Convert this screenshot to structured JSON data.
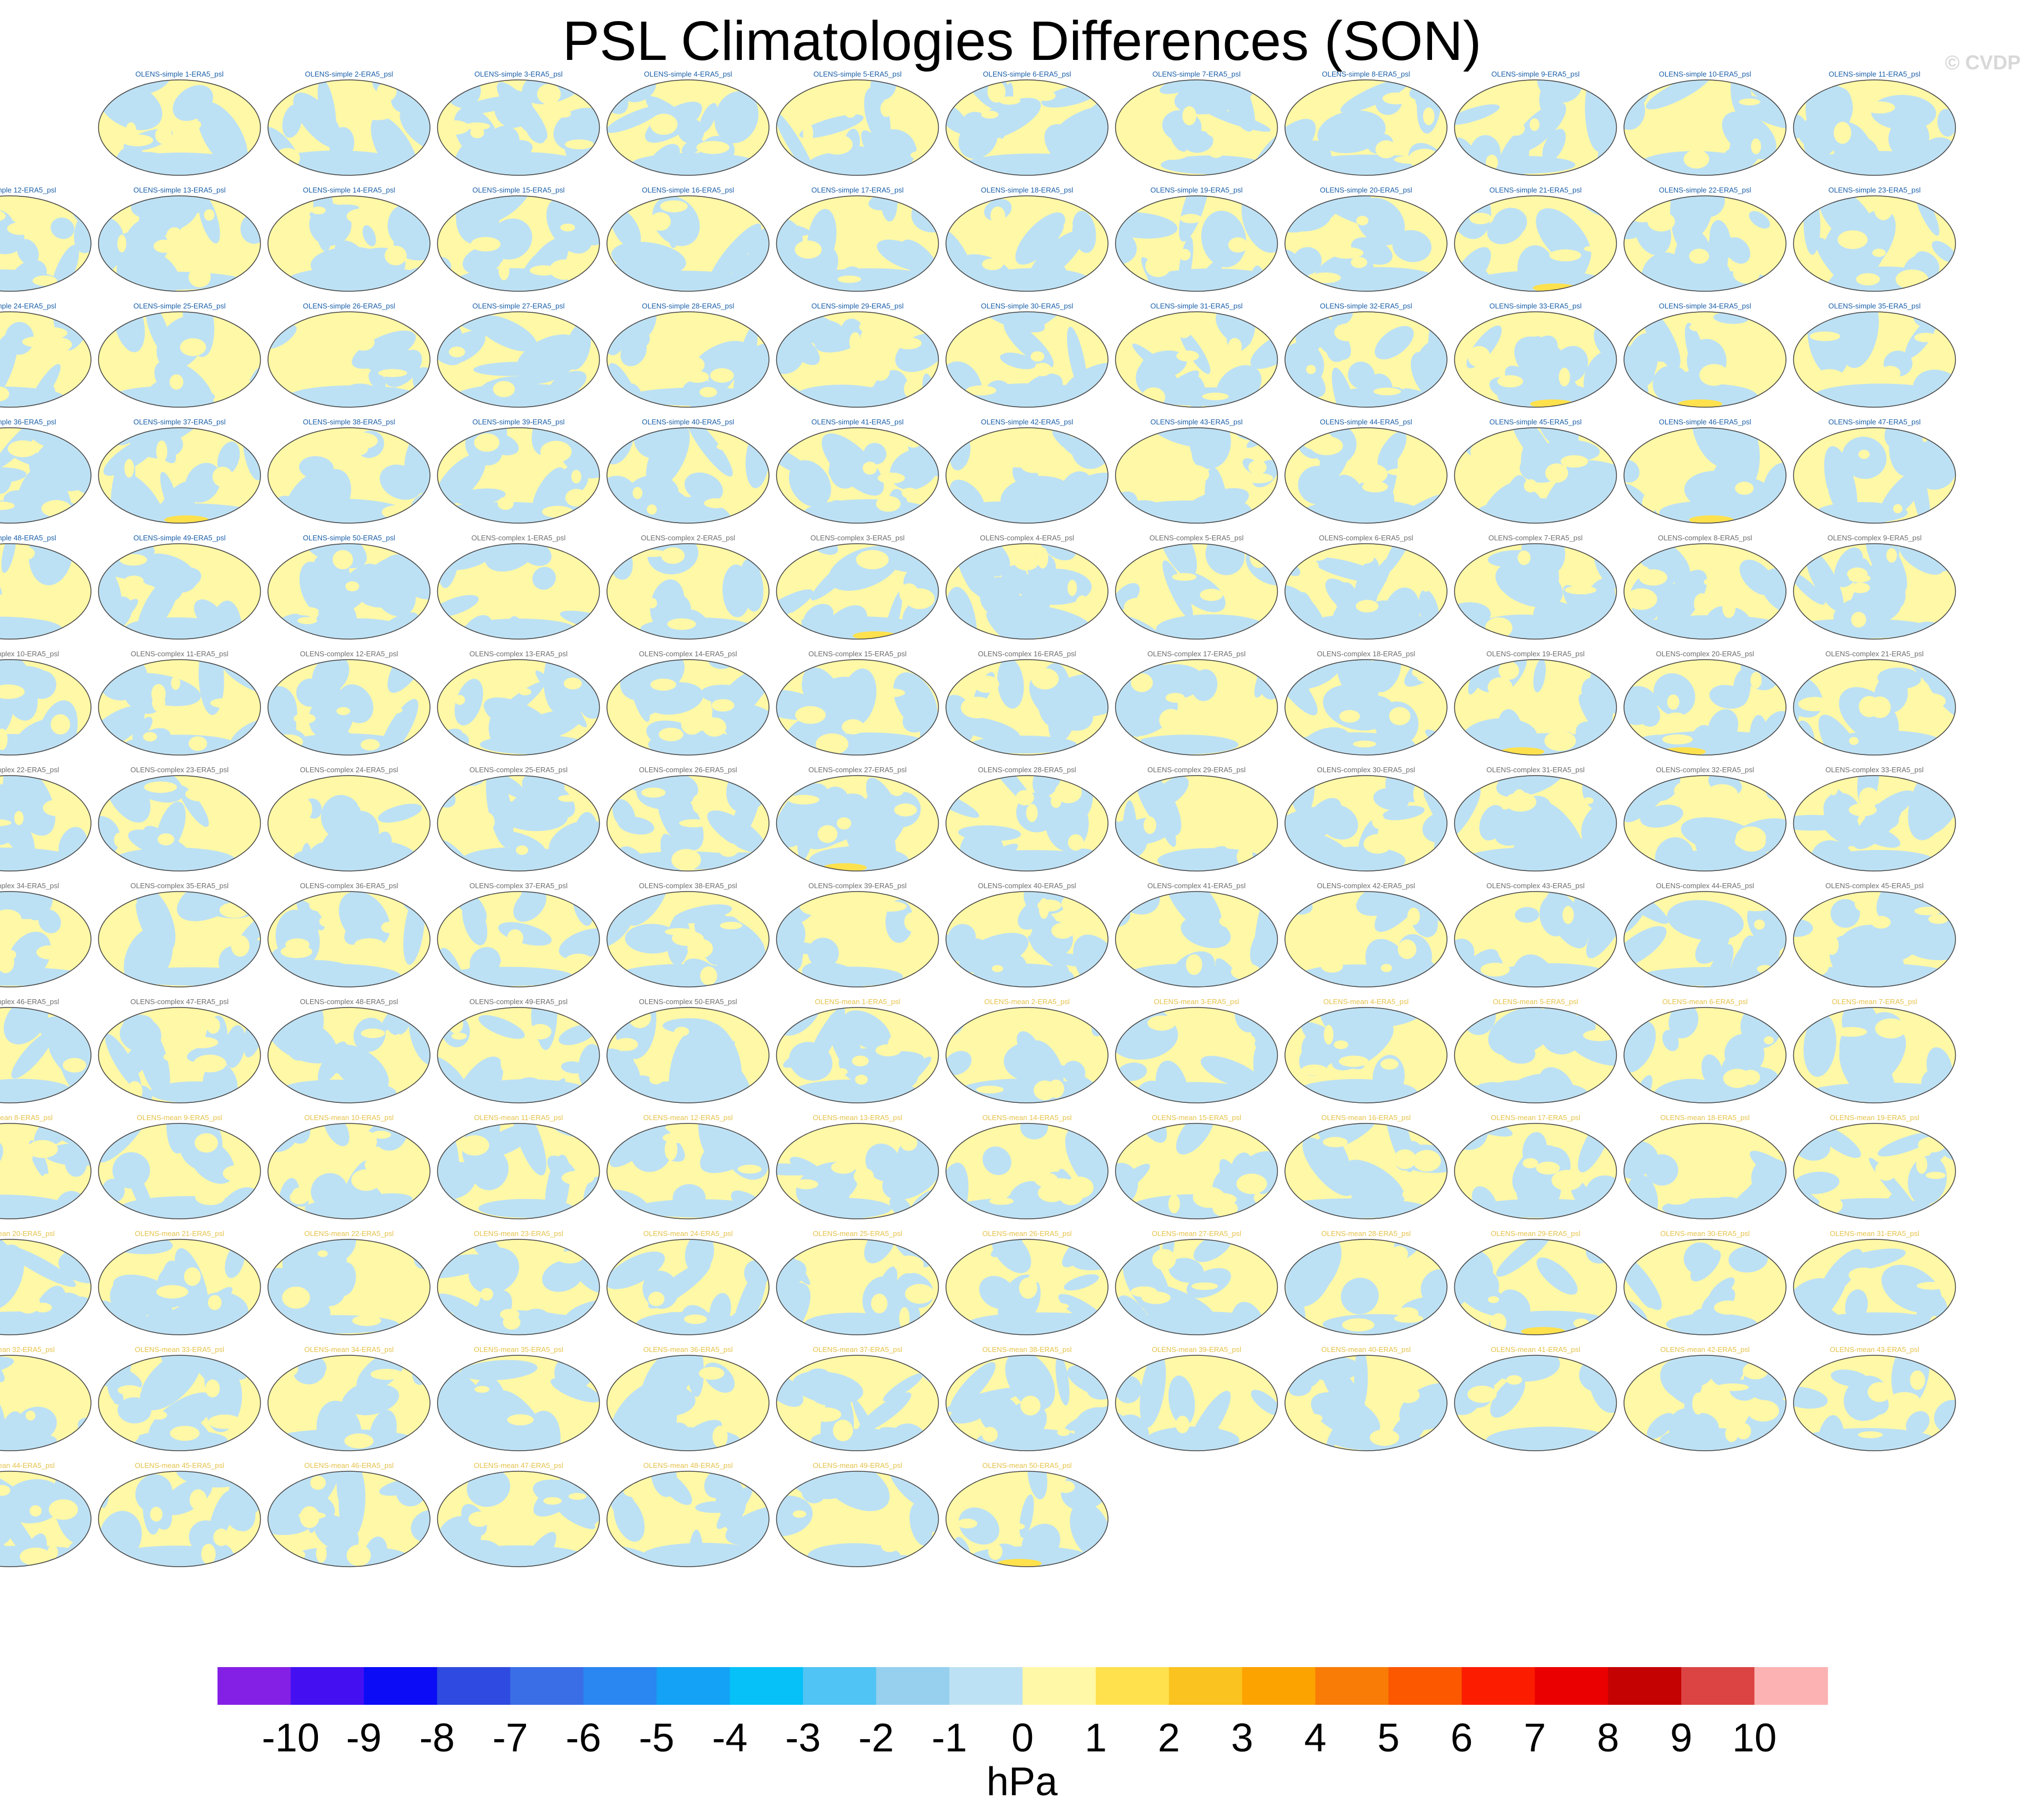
{
  "title": "PSL Climatologies Differences (SON)",
  "watermark": "© CVDP",
  "chart_data": {
    "type": "map-panel-grid",
    "variable": "psl",
    "season": "SON",
    "reference": "ERA5",
    "panel_label_suffix": "-ERA5_psl",
    "panel_groups": [
      {
        "prefix": "OLENS-simple ",
        "count": 50,
        "title_color": "#1a5fa8"
      },
      {
        "prefix": "OLENS-complex ",
        "count": 50,
        "title_color": "#6e6e6e"
      },
      {
        "prefix": "OLENS-mean ",
        "count": 50,
        "title_color": "#e6c24a"
      }
    ],
    "map_palette": {
      "negative": "#bde1f4",
      "positive": "#fff8a6",
      "strong_positive": "#ffe14d",
      "coast": "#7a7a7a",
      "frame": "#444444"
    },
    "colorbar": {
      "label": "hPa",
      "ticks": [
        "-10",
        "-9",
        "-8",
        "-7",
        "-6",
        "-5",
        "-4",
        "-3",
        "-2",
        "-1",
        "0",
        "1",
        "2",
        "3",
        "4",
        "5",
        "6",
        "7",
        "8",
        "9",
        "10"
      ],
      "colors": [
        "#8420e6",
        "#4410f2",
        "#0c0cf6",
        "#2e4ae0",
        "#3a6ee6",
        "#2a86f0",
        "#13a2f6",
        "#06c0f8",
        "#50c4f4",
        "#96d0ee",
        "#bde1f4",
        "#fff8a6",
        "#ffe14d",
        "#fbc31f",
        "#fca300",
        "#f87c06",
        "#fc5800",
        "#fc1c00",
        "#ea0000",
        "#c40202",
        "#dc4444",
        "#fcb2b2"
      ]
    }
  }
}
